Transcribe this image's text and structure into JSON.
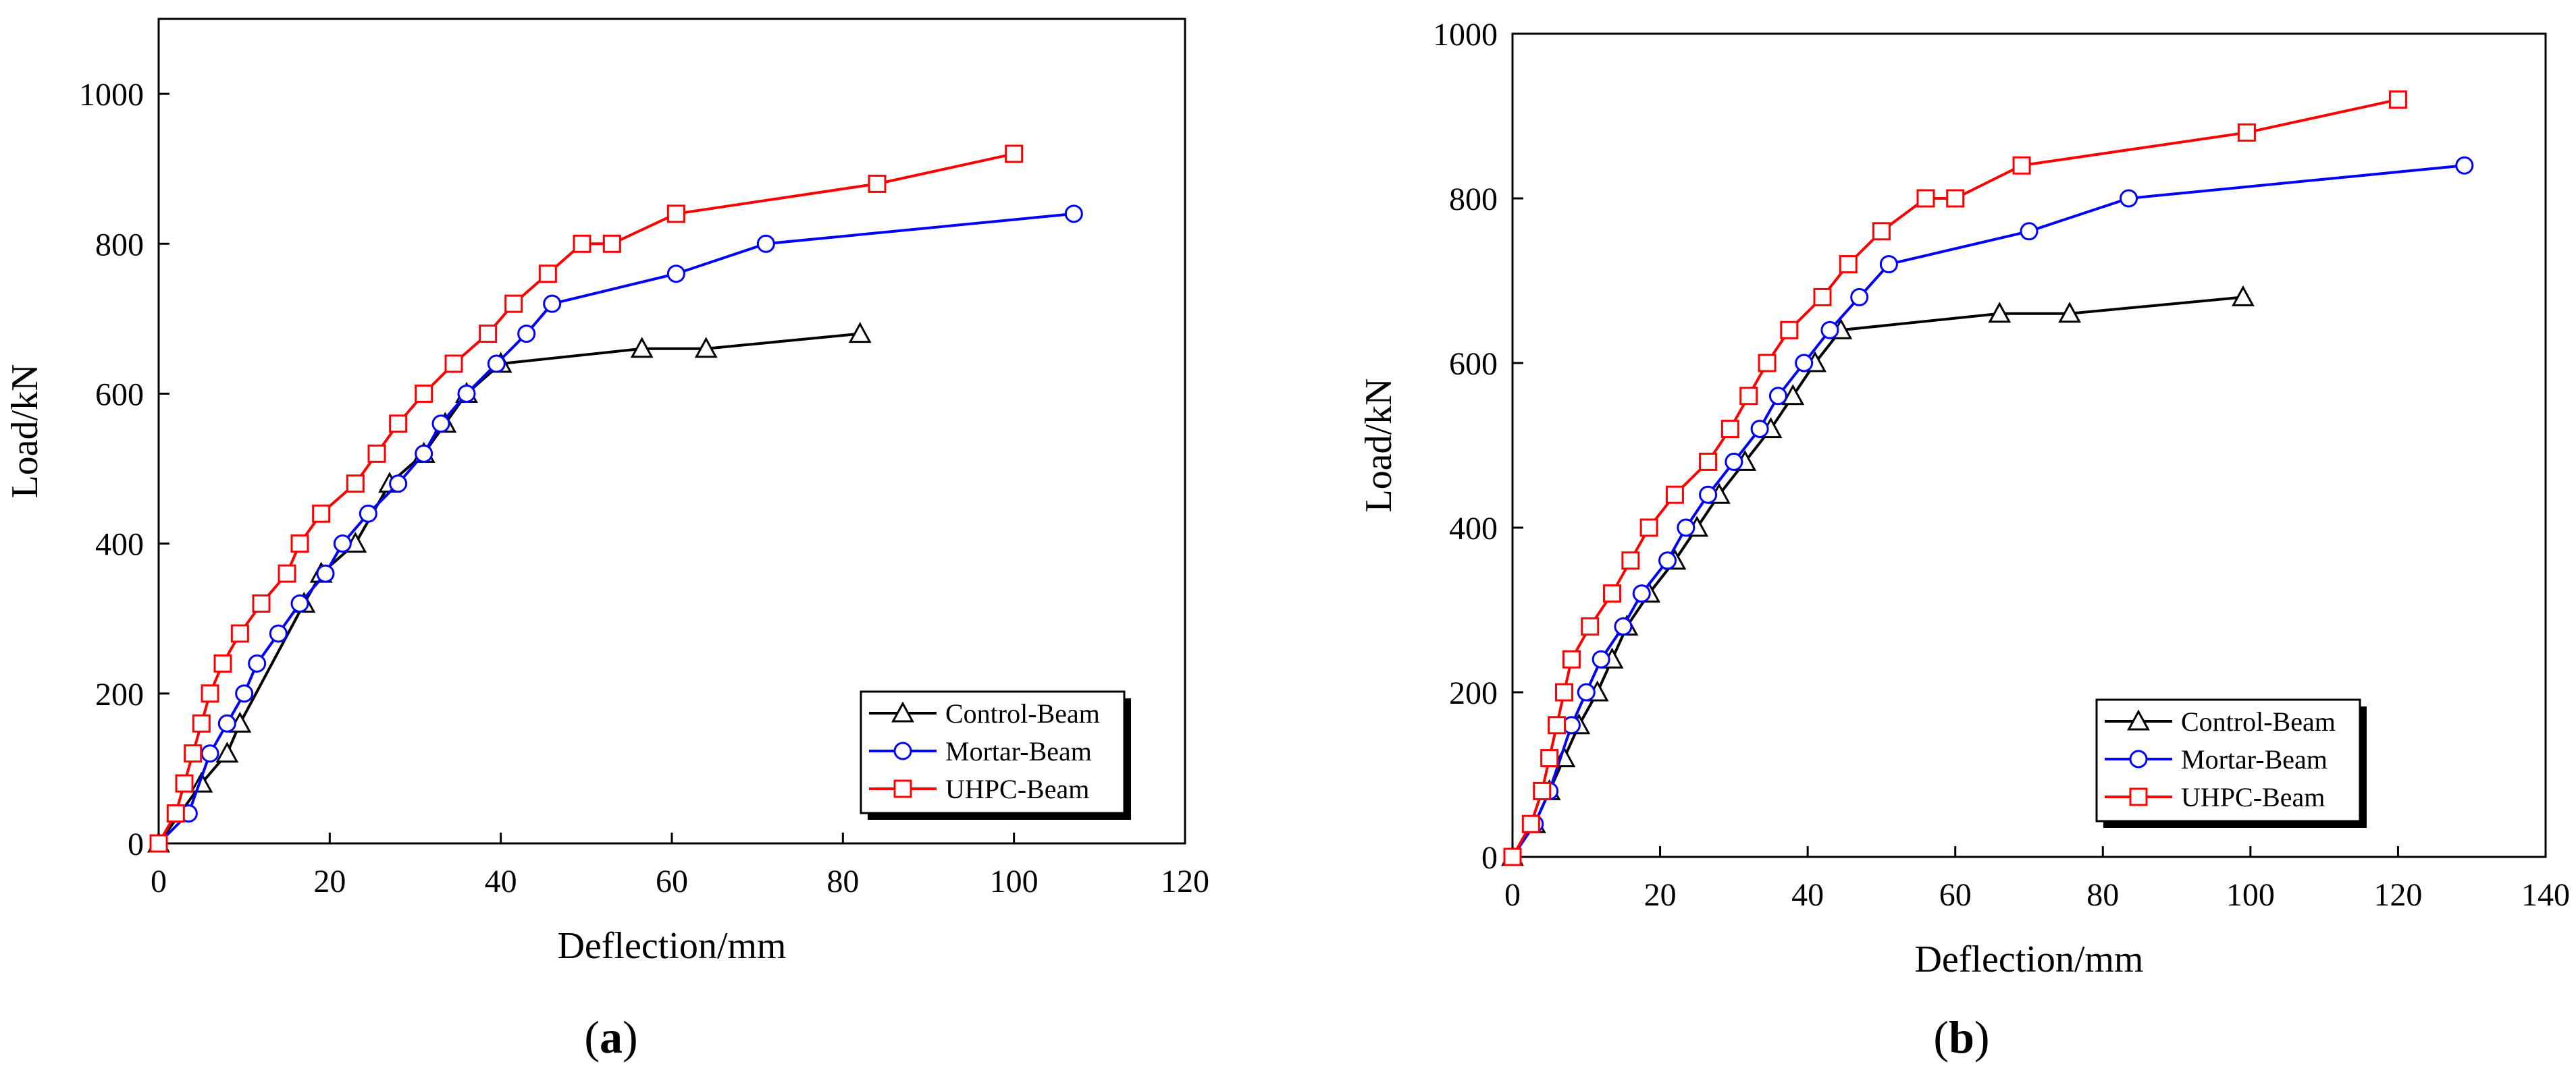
{
  "chart_data": [
    {
      "type": "line",
      "panel_label": "a",
      "xlabel": "Deflection/mm",
      "ylabel": "Load/kN",
      "xlim": [
        0,
        120
      ],
      "ylim": [
        0,
        1100
      ],
      "xticks": [
        0,
        20,
        40,
        60,
        80,
        100,
        120
      ],
      "yticks": [
        0,
        200,
        400,
        600,
        800,
        1000
      ],
      "legend_position": "bottom-right",
      "series": [
        {
          "name": "Control-Beam",
          "color": "#000000",
          "marker": "triangle",
          "x": [
            0,
            5,
            8,
            9.5,
            17,
            19,
            23,
            27,
            31,
            33.5,
            36,
            40,
            56.5,
            64,
            82
          ],
          "y": [
            0,
            80,
            120,
            160,
            320,
            360,
            400,
            480,
            520,
            560,
            600,
            640,
            660,
            660,
            680
          ]
        },
        {
          "name": "Mortar-Beam",
          "color": "#0000ff",
          "marker": "circle",
          "x": [
            0,
            3.5,
            6,
            8,
            10,
            11.5,
            14,
            16.5,
            19.5,
            21.5,
            24.5,
            28,
            31,
            33,
            36,
            39.5,
            43,
            46,
            60.5,
            71,
            107
          ],
          "y": [
            0,
            40,
            120,
            160,
            200,
            240,
            280,
            320,
            360,
            400,
            440,
            480,
            520,
            560,
            600,
            640,
            680,
            720,
            760,
            800,
            840
          ]
        },
        {
          "name": "UHPC-Beam",
          "color": "#ff0000",
          "marker": "square",
          "x": [
            0,
            2,
            3,
            4,
            5,
            6,
            7.5,
            9.5,
            12,
            15,
            16.5,
            19,
            23,
            25.5,
            28,
            31,
            34.5,
            38.5,
            41.5,
            45.5,
            49.5,
            53,
            60.5,
            84,
            100
          ],
          "y": [
            0,
            40,
            80,
            120,
            160,
            200,
            240,
            280,
            320,
            360,
            400,
            440,
            480,
            520,
            560,
            600,
            640,
            680,
            720,
            760,
            800,
            800,
            840,
            880,
            920
          ]
        }
      ]
    },
    {
      "type": "line",
      "panel_label": "b",
      "xlabel": "Deflection/mm",
      "ylabel": "Load/kN",
      "xlim": [
        0,
        140
      ],
      "ylim": [
        0,
        1000
      ],
      "xticks": [
        0,
        20,
        40,
        60,
        80,
        100,
        120,
        140
      ],
      "yticks": [
        0,
        200,
        400,
        600,
        800,
        1000
      ],
      "legend_position": "bottom-right",
      "series": [
        {
          "name": "Control-Beam",
          "color": "#000000",
          "marker": "triangle",
          "x": [
            0,
            3,
            5,
            7,
            9,
            11.5,
            13.5,
            15.5,
            18.5,
            22,
            25,
            28,
            31.5,
            35,
            38,
            41,
            44.5,
            66,
            75.5,
            99
          ],
          "y": [
            0,
            40,
            80,
            120,
            160,
            200,
            240,
            280,
            320,
            360,
            400,
            440,
            480,
            520,
            560,
            600,
            640,
            660,
            660,
            680
          ]
        },
        {
          "name": "Mortar-Beam",
          "color": "#0000ff",
          "marker": "circle",
          "x": [
            0,
            3,
            5,
            8,
            10,
            12,
            15,
            17.5,
            21,
            23.5,
            26.5,
            30,
            33.5,
            36,
            39.5,
            43,
            47,
            51,
            70,
            83.5,
            129
          ],
          "y": [
            0,
            40,
            80,
            160,
            200,
            240,
            280,
            320,
            360,
            400,
            440,
            480,
            520,
            560,
            600,
            640,
            680,
            720,
            760,
            800,
            840
          ]
        },
        {
          "name": "UHPC-Beam",
          "color": "#ff0000",
          "marker": "square",
          "x": [
            0,
            2.5,
            4,
            5,
            6,
            7,
            8,
            10.5,
            13.5,
            16,
            18.5,
            22,
            26.5,
            29.5,
            32,
            34.5,
            37.5,
            42,
            45.5,
            50,
            56,
            60,
            69,
            99.5,
            120
          ],
          "y": [
            0,
            40,
            80,
            120,
            160,
            200,
            240,
            280,
            320,
            360,
            400,
            440,
            480,
            520,
            560,
            600,
            640,
            680,
            720,
            760,
            800,
            800,
            840,
            880,
            920
          ]
        }
      ]
    }
  ]
}
